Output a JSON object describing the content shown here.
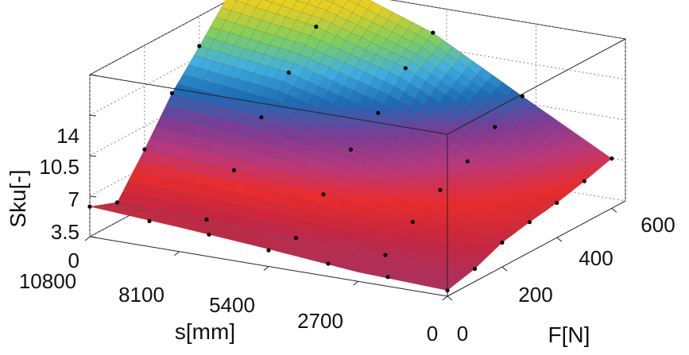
{
  "chart_data": {
    "type": "surface3d",
    "title": "",
    "axes": {
      "x": {
        "label": "s[mm]",
        "ticks": [
          "10800",
          "8100",
          "5400",
          "2700",
          "0"
        ],
        "range": [
          0,
          10800
        ]
      },
      "y": {
        "label": "F[N]",
        "ticks": [
          "0",
          "200",
          "400",
          "600"
        ],
        "range": [
          0,
          650
        ]
      },
      "z": {
        "label": "Sku[-]",
        "ticks": [
          "0",
          "3.5",
          "7",
          "10.5",
          "14"
        ],
        "range": [
          0,
          14
        ]
      }
    },
    "colormap": [
      "#a8326e",
      "#c62440",
      "#ee2a2a",
      "#b9377e",
      "#7b3b96",
      "#1a6bb6",
      "#3fb0e2",
      "#7fcf5e",
      "#e4cf22"
    ],
    "grid": true,
    "surface": {
      "s_values": [
        0,
        2700,
        5400,
        8100,
        10800
      ],
      "F_values": [
        0,
        100,
        200,
        300,
        400,
        500,
        600
      ],
      "sku": [
        [
          0.5,
          1.1,
          2.1,
          2.6,
          3.0,
          3.6,
          4.3
        ],
        [
          0.8,
          1.0,
          2.6,
          4.1,
          5.3,
          7.0,
          8.4
        ],
        [
          1.5,
          1.2,
          3.7,
          6.3,
          8.2,
          10.8,
          12.6
        ],
        [
          2.1,
          1.5,
          4.5,
          7.8,
          10.4,
          13.1,
          15.3
        ],
        [
          2.6,
          1.7,
          5.0,
          8.6,
          11.4,
          14.3,
          16.6
        ]
      ]
    },
    "measured_points": [
      {
        "s": 10800,
        "F": 0,
        "sku": 2.6
      },
      {
        "s": 9000,
        "F": 0,
        "sku": 2.2
      },
      {
        "s": 7200,
        "F": 0,
        "sku": 1.9
      },
      {
        "s": 5400,
        "F": 0,
        "sku": 1.4
      },
      {
        "s": 3600,
        "F": 0,
        "sku": 1.1
      },
      {
        "s": 1800,
        "F": 0,
        "sku": 0.8
      },
      {
        "s": 0,
        "F": 0,
        "sku": 0.5
      },
      {
        "s": 10800,
        "F": 100,
        "sku": 1.7
      },
      {
        "s": 8100,
        "F": 100,
        "sku": 1.5
      },
      {
        "s": 5400,
        "F": 100,
        "sku": 1.2
      },
      {
        "s": 2700,
        "F": 100,
        "sku": 1.0
      },
      {
        "s": 0,
        "F": 100,
        "sku": 1.1
      },
      {
        "s": 10800,
        "F": 200,
        "sku": 5.0
      },
      {
        "s": 8100,
        "F": 200,
        "sku": 4.5
      },
      {
        "s": 5400,
        "F": 200,
        "sku": 3.7
      },
      {
        "s": 2700,
        "F": 200,
        "sku": 2.6
      },
      {
        "s": 0,
        "F": 200,
        "sku": 2.1
      },
      {
        "s": 10800,
        "F": 300,
        "sku": 8.6
      },
      {
        "s": 8100,
        "F": 300,
        "sku": 7.8
      },
      {
        "s": 5400,
        "F": 300,
        "sku": 6.3
      },
      {
        "s": 2700,
        "F": 300,
        "sku": 4.1
      },
      {
        "s": 0,
        "F": 300,
        "sku": 2.6
      },
      {
        "s": 10800,
        "F": 400,
        "sku": 11.4
      },
      {
        "s": 8100,
        "F": 400,
        "sku": 10.4
      },
      {
        "s": 5400,
        "F": 400,
        "sku": 8.2
      },
      {
        "s": 2700,
        "F": 400,
        "sku": 5.3
      },
      {
        "s": 0,
        "F": 400,
        "sku": 3.0
      },
      {
        "s": 10800,
        "F": 500,
        "sku": 14.3
      },
      {
        "s": 8100,
        "F": 500,
        "sku": 13.1
      },
      {
        "s": 5400,
        "F": 500,
        "sku": 10.8
      },
      {
        "s": 2700,
        "F": 500,
        "sku": 7.0
      },
      {
        "s": 0,
        "F": 500,
        "sku": 3.6
      },
      {
        "s": 10800,
        "F": 600,
        "sku": 16.6
      },
      {
        "s": 8100,
        "F": 600,
        "sku": 15.3
      },
      {
        "s": 5400,
        "F": 600,
        "sku": 12.6
      },
      {
        "s": 2700,
        "F": 600,
        "sku": 8.4
      },
      {
        "s": 0,
        "F": 600,
        "sku": 4.3
      }
    ]
  }
}
